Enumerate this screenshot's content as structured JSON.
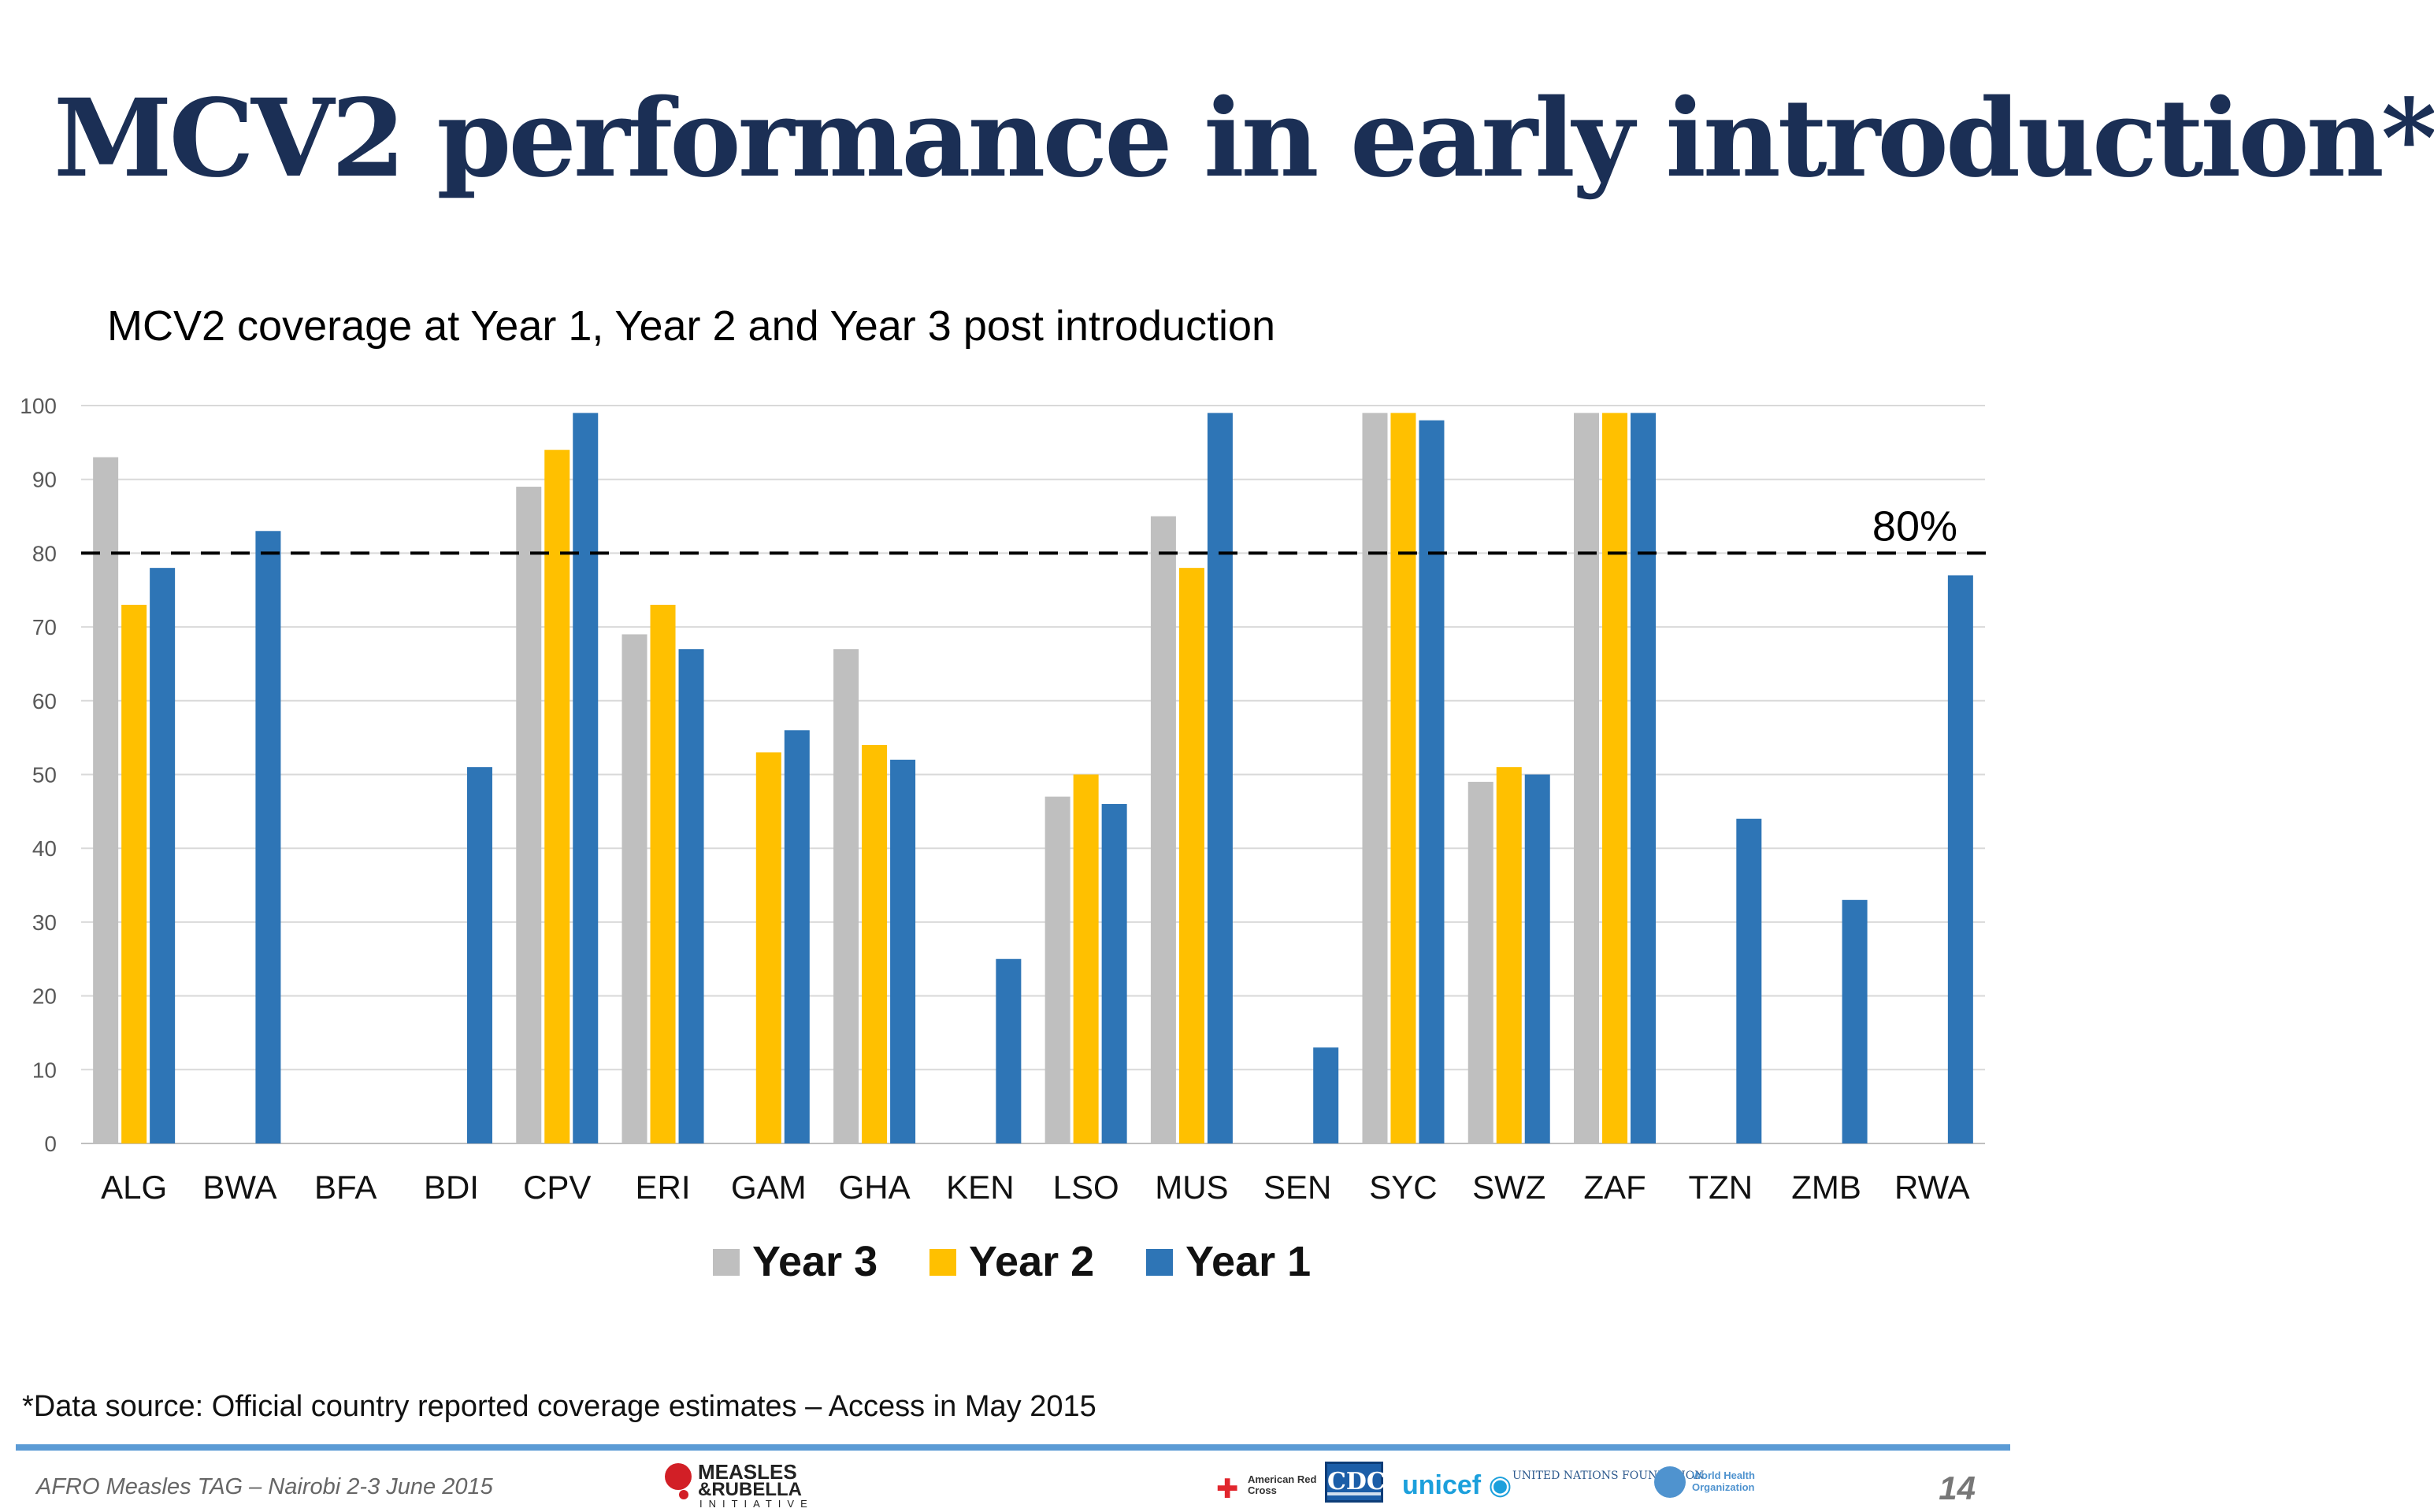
{
  "page": {
    "title": "MCV2 performance in early introduction*",
    "footnote": "*Data source: Official country reported coverage estimates – Access in May 2015",
    "footer_left": "AFRO Measles TAG – Nairobi 2-3 June 2015",
    "page_number": "14"
  },
  "logos": {
    "measles_rubella": {
      "line1": "MEASLES",
      "line2": "&RUBELLA",
      "line3": "INITIATIVE"
    },
    "red_cross": {
      "text": "American Red Cross"
    },
    "cdc": {
      "text": "CDC"
    },
    "unicef": {
      "text": "unicef"
    },
    "unf": {
      "text": "UNITED NATIONS FOUNDATION"
    },
    "who": {
      "text": "World Health Organization"
    }
  },
  "chart_data": {
    "type": "bar",
    "title": "MCV2 coverage at Year 1, Year 2 and Year 3 post introduction",
    "categories": [
      "ALG",
      "BWA",
      "BFA",
      "BDI",
      "CPV",
      "ERI",
      "GAM",
      "GHA",
      "KEN",
      "LSO",
      "MUS",
      "SEN",
      "SYC",
      "SWZ",
      "ZAF",
      "TZN",
      "ZMB",
      "RWA"
    ],
    "series": [
      {
        "name": "Year 3",
        "color": "#bfbfbf",
        "values": [
          93,
          null,
          null,
          null,
          89,
          69,
          null,
          67,
          null,
          47,
          85,
          null,
          99,
          49,
          99,
          null,
          null,
          null
        ]
      },
      {
        "name": "Year 2",
        "color": "#ffc000",
        "values": [
          73,
          null,
          null,
          null,
          94,
          73,
          53,
          54,
          null,
          50,
          78,
          null,
          99,
          51,
          99,
          null,
          null,
          null
        ]
      },
      {
        "name": "Year 1",
        "color": "#2e75b6",
        "values": [
          78,
          83,
          null,
          51,
          99,
          67,
          56,
          52,
          25,
          46,
          99,
          13,
          98,
          50,
          99,
          44,
          33,
          77
        ]
      }
    ],
    "ylim": [
      0,
      100
    ],
    "yticks": [
      0,
      10,
      20,
      30,
      40,
      50,
      60,
      70,
      80,
      90,
      100
    ],
    "grid": true,
    "legend_position": "bottom",
    "reference_line": {
      "value": 80,
      "label": "80%",
      "style": "dashed"
    }
  }
}
